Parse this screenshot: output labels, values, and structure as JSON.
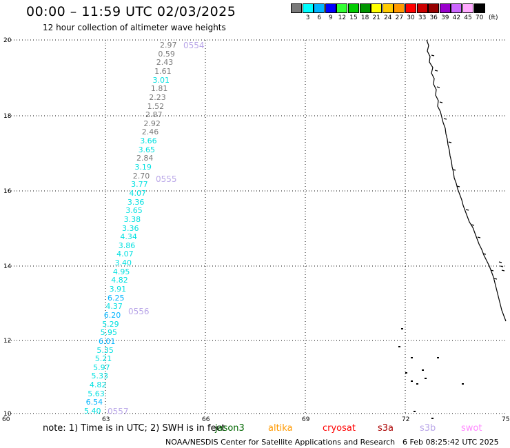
{
  "title": "00:00 – 11:59 UTC 02/03/2025",
  "subtitle": "12 hour collection of altimeter wave heights",
  "legend": {
    "unit": "(ft)",
    "items": [
      {
        "label": "",
        "color": "#7a7a7a"
      },
      {
        "label": "3",
        "color": "#00ffff"
      },
      {
        "label": "6",
        "color": "#00b4ff"
      },
      {
        "label": "9",
        "color": "#0000ff"
      },
      {
        "label": "12",
        "color": "#33ff33"
      },
      {
        "label": "15",
        "color": "#00cc00"
      },
      {
        "label": "18",
        "color": "#009600"
      },
      {
        "label": "21",
        "color": "#ffff00"
      },
      {
        "label": "24",
        "color": "#ffcc00"
      },
      {
        "label": "27",
        "color": "#ff9900"
      },
      {
        "label": "30",
        "color": "#ff0000"
      },
      {
        "label": "33",
        "color": "#cc0000"
      },
      {
        "label": "36",
        "color": "#960000"
      },
      {
        "label": "39",
        "color": "#9900cc"
      },
      {
        "label": "42",
        "color": "#cc66ff"
      },
      {
        "label": "45",
        "color": "#ffaaff"
      },
      {
        "label": "70",
        "color": "#000000"
      }
    ]
  },
  "axes": {
    "y_ticks": [
      "20",
      "18",
      "16",
      "14",
      "12",
      "10"
    ],
    "x_ticks": [
      "60",
      "63",
      "66",
      "69",
      "72",
      "75"
    ]
  },
  "passes": [
    {
      "label": "0554"
    },
    {
      "label": "0555"
    },
    {
      "label": "0556"
    },
    {
      "label": "0557"
    }
  ],
  "readings": [
    {
      "value": "2.97",
      "color": "#7a7a7a"
    },
    {
      "value": "0.59",
      "color": "#7a7a7a"
    },
    {
      "value": "2.43",
      "color": "#7a7a7a"
    },
    {
      "value": "1.61",
      "color": "#7a7a7a"
    },
    {
      "value": "3.01",
      "color": "#00e0e0"
    },
    {
      "value": "1.81",
      "color": "#7a7a7a"
    },
    {
      "value": "2.23",
      "color": "#7a7a7a"
    },
    {
      "value": "1.52",
      "color": "#7a7a7a"
    },
    {
      "value": "2.87",
      "color": "#7a7a7a"
    },
    {
      "value": "2.92",
      "color": "#7a7a7a"
    },
    {
      "value": "2.46",
      "color": "#7a7a7a"
    },
    {
      "value": "3.66",
      "color": "#00e0e0"
    },
    {
      "value": "3.65",
      "color": "#00e0e0"
    },
    {
      "value": "2.84",
      "color": "#7a7a7a"
    },
    {
      "value": "3.19",
      "color": "#00e0e0"
    },
    {
      "value": "2.70",
      "color": "#7a7a7a"
    },
    {
      "value": "3.77",
      "color": "#00e0e0"
    },
    {
      "value": "4.07",
      "color": "#00e0e0"
    },
    {
      "value": "3.36",
      "color": "#00e0e0"
    },
    {
      "value": "3.65",
      "color": "#00e0e0"
    },
    {
      "value": "3.38",
      "color": "#00e0e0"
    },
    {
      "value": "3.36",
      "color": "#00e0e0"
    },
    {
      "value": "4.34",
      "color": "#00e0e0"
    },
    {
      "value": "3.86",
      "color": "#00e0e0"
    },
    {
      "value": "4.07",
      "color": "#00e0e0"
    },
    {
      "value": "3.40",
      "color": "#00e0e0"
    },
    {
      "value": "4.95",
      "color": "#00e0e0"
    },
    {
      "value": "4.82",
      "color": "#00e0e0"
    },
    {
      "value": "3.91",
      "color": "#00e0e0"
    },
    {
      "value": "6.25",
      "color": "#00b4ff"
    },
    {
      "value": "4.37",
      "color": "#00e0e0"
    },
    {
      "value": "6.20",
      "color": "#00b4ff"
    },
    {
      "value": "5.29",
      "color": "#00e0e0"
    },
    {
      "value": "5.95",
      "color": "#00e0e0"
    },
    {
      "value": "6.01",
      "color": "#00b4ff"
    },
    {
      "value": "5.35",
      "color": "#00e0e0"
    },
    {
      "value": "5.21",
      "color": "#00e0e0"
    },
    {
      "value": "5.97",
      "color": "#00e0e0"
    },
    {
      "value": "5.33",
      "color": "#00e0e0"
    },
    {
      "value": "4.82",
      "color": "#00e0e0"
    },
    {
      "value": "5.63",
      "color": "#00e0e0"
    },
    {
      "value": "6.54",
      "color": "#00b4ff"
    },
    {
      "value": "5.40",
      "color": "#00e0e0"
    }
  ],
  "footer": {
    "note": "note:  1) Time is in UTC; 2) SWH is in feet",
    "satellites": [
      {
        "name": "jason3",
        "color": "#006600"
      },
      {
        "name": "altika",
        "color": "#ff9900"
      },
      {
        "name": "cryosat",
        "color": "#ff0000"
      },
      {
        "name": "s3a",
        "color": "#aa0000"
      },
      {
        "name": "s3b",
        "color": "#b9a6e8"
      },
      {
        "name": "swot",
        "color": "#ff88ff"
      }
    ],
    "credit": "NOAA/NESDIS Center for Satellite Applications and Research",
    "timestamp": "6 Feb 08:25:42 UTC 2025"
  }
}
